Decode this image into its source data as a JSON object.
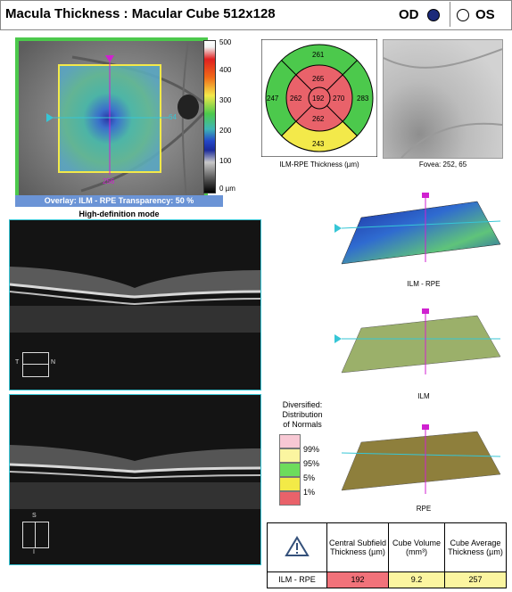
{
  "header": {
    "title": "Macula Thickness : Macular Cube 512x128",
    "od_label": "OD",
    "os_label": "OS"
  },
  "fundus": {
    "marker_bottom": "256",
    "marker_right": "64",
    "overlay_caption": "Overlay: ILM - RPE  Transparency: 50 %",
    "mode_caption": "High-definition mode"
  },
  "color_scale": {
    "ticks": [
      "500",
      "400",
      "300",
      "200",
      "100",
      "0 µm"
    ]
  },
  "etdrs": {
    "center": "192",
    "inner_top": "265",
    "inner_left": "262",
    "inner_right": "270",
    "inner_bottom": "262",
    "outer_top": "261",
    "outer_left": "247",
    "outer_right": "283",
    "outer_bottom": "243",
    "caption": "ILM-RPE Thickness (µm)"
  },
  "slo": {
    "caption": "Fovea: 252, 65"
  },
  "oct_top": {
    "orientation_left": "T",
    "orientation_right": "N"
  },
  "oct_bottom": {
    "orientation_top": "S",
    "orientation_bottom": "I"
  },
  "surfaces": [
    {
      "caption": "ILM - RPE"
    },
    {
      "caption": "ILM"
    },
    {
      "caption": "RPE"
    }
  ],
  "normals": {
    "title_l1": "Diversified:",
    "title_l2": "Distribution",
    "title_l3": "of Normals",
    "levels": [
      "99%",
      "95%",
      "5%",
      "1%"
    ],
    "colors": [
      "#f8c8d4",
      "#fbf5a0",
      "#6ddc5c",
      "#f3ea47",
      "#e9626a"
    ]
  },
  "summary": {
    "warning_icon": "warning-triangle-icon",
    "col1": "Central Subfield Thickness (µm)",
    "col2": "Cube Volume (mm³)",
    "col3": "Cube Average Thickness (µm)",
    "row_label": "ILM - RPE",
    "val1": "192",
    "val2": "9.2",
    "val3": "257",
    "val1_color": "#f1727a",
    "val2_color": "#fbf5a0",
    "val3_color": "#fbf5a0"
  }
}
